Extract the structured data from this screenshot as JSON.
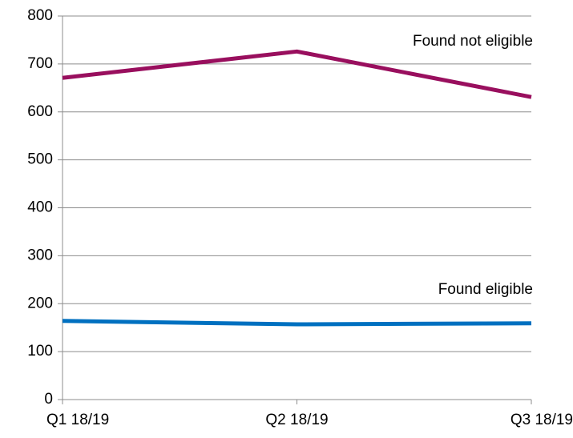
{
  "chart_data": {
    "type": "line",
    "categories": [
      "Q1 18/19",
      "Q2 18/19",
      "Q3 18/19"
    ],
    "series": [
      {
        "name": "Found not eligible",
        "color": "#990f5e",
        "values": [
          671,
          726,
          631
        ]
      },
      {
        "name": "Found eligible",
        "color": "#0070c0",
        "values": [
          164,
          157,
          159
        ]
      }
    ],
    "ylim": [
      0,
      800
    ],
    "yticks": [
      0,
      100,
      200,
      300,
      400,
      500,
      600,
      700,
      800
    ],
    "grid": true
  }
}
